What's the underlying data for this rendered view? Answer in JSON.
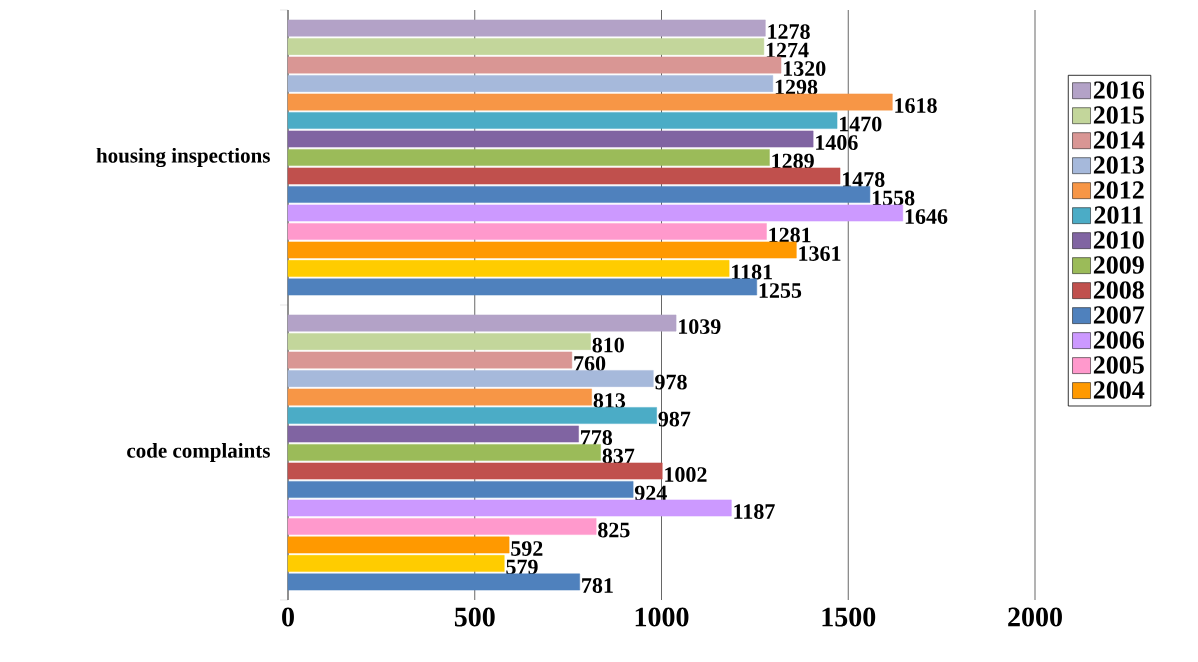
{
  "chart_data": {
    "type": "bar",
    "orientation": "horizontal",
    "categories": [
      "housing inspections",
      "code complaints"
    ],
    "series": [
      {
        "name": "2016",
        "color": "#b3a2c7",
        "values": [
          1278,
          1039
        ]
      },
      {
        "name": "2015",
        "color": "#c3d69b",
        "values": [
          1274,
          810
        ]
      },
      {
        "name": "2014",
        "color": "#d99694",
        "values": [
          1320,
          760
        ]
      },
      {
        "name": "2013",
        "color": "#a6b9db",
        "values": [
          1298,
          978
        ]
      },
      {
        "name": "2012",
        "color": "#f79646",
        "values": [
          1618,
          813
        ]
      },
      {
        "name": "2011",
        "color": "#4bacc6",
        "values": [
          1470,
          987
        ]
      },
      {
        "name": "2010",
        "color": "#8064a2",
        "values": [
          1406,
          778
        ]
      },
      {
        "name": "2009",
        "color": "#9bbb59",
        "values": [
          1289,
          837
        ]
      },
      {
        "name": "2008",
        "color": "#c0504d",
        "values": [
          1478,
          1002
        ]
      },
      {
        "name": "2007",
        "color": "#4f81bd",
        "values": [
          1558,
          924
        ]
      },
      {
        "name": "2006",
        "color": "#cc99ff",
        "values": [
          1646,
          1187
        ]
      },
      {
        "name": "2005",
        "color": "#ff99cc",
        "values": [
          1281,
          825
        ]
      },
      {
        "name": "2004",
        "color": "#ff9900",
        "values": [
          1361,
          592
        ]
      },
      {
        "color": "#ffcc00",
        "values": [
          1181,
          579
        ]
      },
      {
        "color": "#4f81bd",
        "values": [
          1255,
          781
        ]
      }
    ],
    "xlim": [
      0,
      2000
    ],
    "xticks": [
      0,
      500,
      1000,
      1500,
      2000
    ],
    "grid": "x",
    "legend": "right",
    "data_labels": true
  }
}
